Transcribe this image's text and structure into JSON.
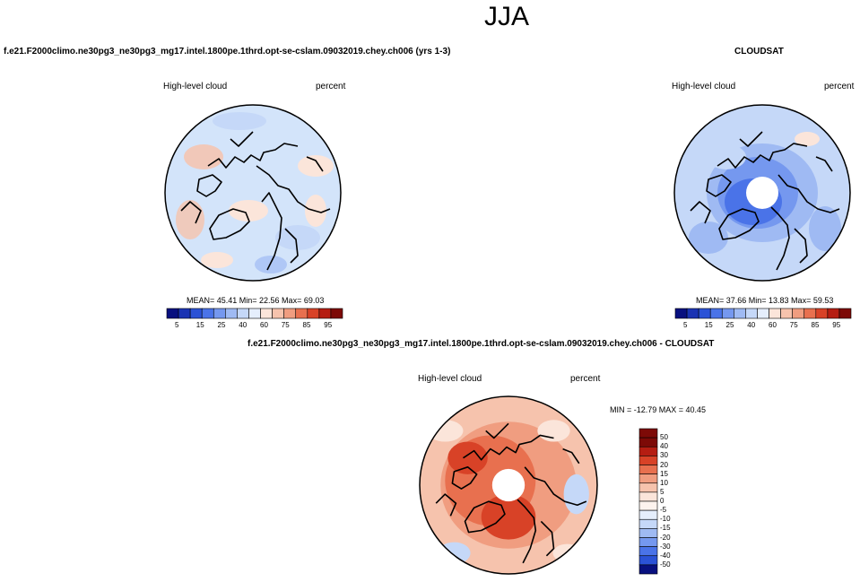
{
  "page": {
    "title": "JJA"
  },
  "panel_model": {
    "case_title": "f.e21.F2000climo.ne30pg3_ne30pg3_mg17.intel.1800pe.1thrd.opt-se-cslam.09032019.chey.ch006 (yrs 1-3)",
    "variable_label": "High-level cloud",
    "units_label": "percent",
    "stats_text": "MEAN=  45.41   Min=  22.56   Max=  69.03",
    "colorbar_ticks": [
      "5",
      "15",
      "25",
      "40",
      "60",
      "75",
      "85",
      "95"
    ]
  },
  "panel_obs": {
    "case_title": "CLOUDSAT",
    "variable_label": "High-level cloud",
    "units_label": "percent",
    "stats_text": "MEAN=  37.66   Min=  13.83   Max=  59.53",
    "colorbar_ticks": [
      "5",
      "15",
      "25",
      "40",
      "60",
      "75",
      "85",
      "95"
    ]
  },
  "panel_diff": {
    "case_title": "f.e21.F2000climo.ne30pg3_ne30pg3_mg17.intel.1800pe.1thrd.opt-se-cslam.09032019.chey.ch006 - CLOUDSAT",
    "variable_label": "High-level cloud",
    "units_label": "percent",
    "stats_text": "MIN = -12.79  MAX =  40.45",
    "colorbar_ticks": [
      "50",
      "40",
      "30",
      "20",
      "15",
      "10",
      "5",
      "0",
      "-5",
      "-10",
      "-15",
      "-20",
      "-30",
      "-40",
      "-50"
    ]
  },
  "colors": {
    "abs_scale": [
      "#08107f",
      "#1a33b3",
      "#2b52d6",
      "#4a73e8",
      "#7598ef",
      "#9fbaf3",
      "#c5d8f8",
      "#e5eefc",
      "#fbe5da",
      "#f6c3ad",
      "#f09d80",
      "#e8704f",
      "#d84227",
      "#b51d12",
      "#7d0a07"
    ],
    "diff_scale": [
      "#7d0a07",
      "#b51d12",
      "#d84227",
      "#e8704f",
      "#f09d80",
      "#f6c3ad",
      "#fbe5da",
      "#fdf3ee",
      "#e5eefc",
      "#c5d8f8",
      "#9fbaf3",
      "#7598ef",
      "#4a73e8",
      "#2b52d6",
      "#08107f"
    ],
    "model_fill": "#d3e4fa",
    "obs_fill": "#b8d0f6",
    "diff_fill": "#f0a283",
    "land_line": "#000000"
  }
}
